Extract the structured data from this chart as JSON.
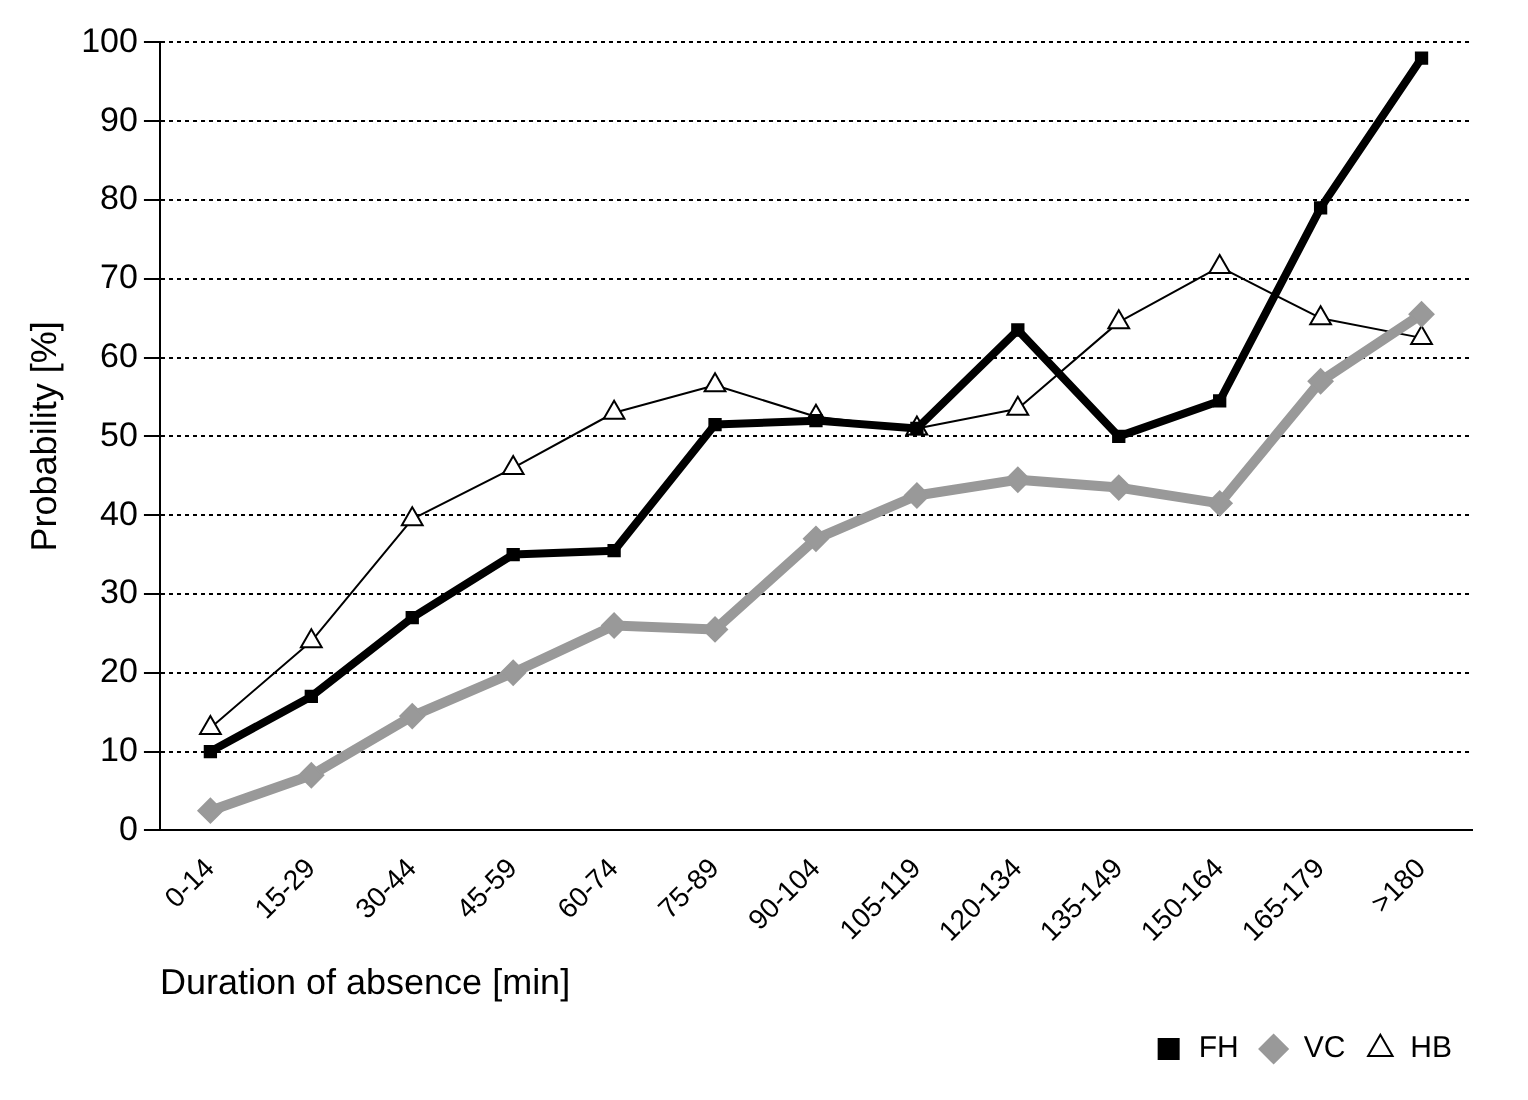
{
  "chart_data": {
    "type": "line",
    "xlabel": "Duration of absence [min]",
    "ylabel": "Probability [%]",
    "categories": [
      "0-14",
      "15-29",
      "30-44",
      "45-59",
      "60-74",
      "75-89",
      "90-104",
      "105-119",
      "120-134",
      "135-149",
      "150-164",
      "165-179",
      ">180"
    ],
    "series": [
      {
        "name": "FH",
        "color": "#000000",
        "marker": "square",
        "values": [
          10,
          17,
          27,
          35,
          35.5,
          51.5,
          52,
          51,
          63.5,
          50,
          54.5,
          79,
          98
        ]
      },
      {
        "name": "VC",
        "color": "#999999",
        "marker": "diamond",
        "values": [
          2.5,
          7,
          14.5,
          20,
          26,
          25.5,
          37,
          42.5,
          44.5,
          43.5,
          41.5,
          57,
          65.5
        ]
      },
      {
        "name": "HB",
        "color": "#000000",
        "marker": "triangle",
        "values": [
          13,
          24,
          39.5,
          46,
          53,
          56.5,
          52.5,
          51,
          53.5,
          64.5,
          71.5,
          65,
          62.5
        ]
      }
    ],
    "ylim": [
      0,
      100
    ],
    "yticks": [
      0,
      10,
      20,
      30,
      40,
      50,
      60,
      70,
      80,
      90,
      100
    ],
    "grid": "y",
    "legend": "bottom right",
    "line_style": "solid"
  }
}
